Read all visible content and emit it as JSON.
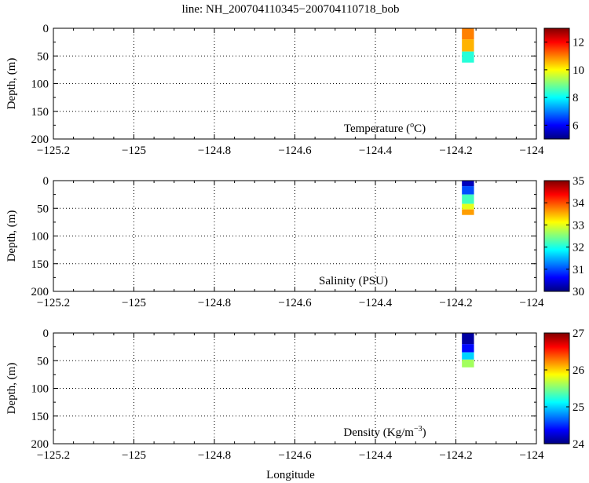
{
  "title": "line: NH_200704110345−200704110718_bob",
  "xlabel": "Longitude",
  "ylabel": "Depth, (m)",
  "x_ticks": [
    "−125.2",
    "−125",
    "−124.8",
    "−124.6",
    "−124.4",
    "−124.2",
    "−124"
  ],
  "y_ticks": [
    "0",
    "50",
    "100",
    "150",
    "200"
  ],
  "panel_labels": {
    "temperature": {
      "main": "Temperature (",
      "sup": "o",
      "tail": "C)"
    },
    "salinity": {
      "main": "Salinity (PSU)"
    },
    "density": {
      "main": "Density (Kg/m",
      "sup": "−3",
      "tail": ")"
    }
  },
  "colorbars": {
    "temperature": {
      "ticks": [
        "6",
        "8",
        "10",
        "12"
      ]
    },
    "salinity": {
      "ticks": [
        "30",
        "31",
        "32",
        "33",
        "34",
        "35"
      ]
    },
    "density": {
      "ticks": [
        "24",
        "25",
        "26",
        "27"
      ]
    }
  },
  "chart_data": [
    {
      "type": "heatmap",
      "name": "Temperature",
      "colormap": "jet",
      "xlim": [
        -125.2,
        -124.0
      ],
      "ylim": [
        200,
        0
      ],
      "clim": [
        5,
        13
      ],
      "grid": true,
      "profiles": [
        {
          "lon_min": -124.185,
          "lon_max": -124.155,
          "depth_top": 0,
          "depth_bottom": 20,
          "value": 11.0
        },
        {
          "lon_min": -124.185,
          "lon_max": -124.155,
          "depth_top": 20,
          "depth_bottom": 42,
          "value": 10.6
        },
        {
          "lon_min": -124.185,
          "lon_max": -124.155,
          "depth_top": 42,
          "depth_bottom": 62,
          "value": 8.3
        }
      ]
    },
    {
      "type": "heatmap",
      "name": "Salinity",
      "colormap": "jet",
      "xlim": [
        -125.2,
        -124.0
      ],
      "ylim": [
        200,
        0
      ],
      "clim": [
        30,
        35
      ],
      "grid": true,
      "profiles": [
        {
          "lon_min": -124.185,
          "lon_max": -124.155,
          "depth_top": 0,
          "depth_bottom": 10,
          "value": 30.3
        },
        {
          "lon_min": -124.185,
          "lon_max": -124.155,
          "depth_top": 10,
          "depth_bottom": 25,
          "value": 31.0
        },
        {
          "lon_min": -124.185,
          "lon_max": -124.155,
          "depth_top": 25,
          "depth_bottom": 42,
          "value": 32.2
        },
        {
          "lon_min": -124.185,
          "lon_max": -124.155,
          "depth_top": 42,
          "depth_bottom": 52,
          "value": 33.0
        },
        {
          "lon_min": -124.185,
          "lon_max": -124.155,
          "depth_top": 52,
          "depth_bottom": 62,
          "value": 33.6
        }
      ]
    },
    {
      "type": "heatmap",
      "name": "Density",
      "colormap": "jet",
      "xlim": [
        -125.2,
        -124.0
      ],
      "ylim": [
        200,
        0
      ],
      "clim": [
        24,
        27
      ],
      "grid": true,
      "profiles": [
        {
          "lon_min": -124.185,
          "lon_max": -124.155,
          "depth_top": 0,
          "depth_bottom": 20,
          "value": 24.1
        },
        {
          "lon_min": -124.185,
          "lon_max": -124.155,
          "depth_top": 20,
          "depth_bottom": 35,
          "value": 24.4
        },
        {
          "lon_min": -124.185,
          "lon_max": -124.155,
          "depth_top": 35,
          "depth_bottom": 48,
          "value": 25.0
        },
        {
          "lon_min": -124.185,
          "lon_max": -124.155,
          "depth_top": 48,
          "depth_bottom": 62,
          "value": 25.6
        }
      ]
    }
  ]
}
